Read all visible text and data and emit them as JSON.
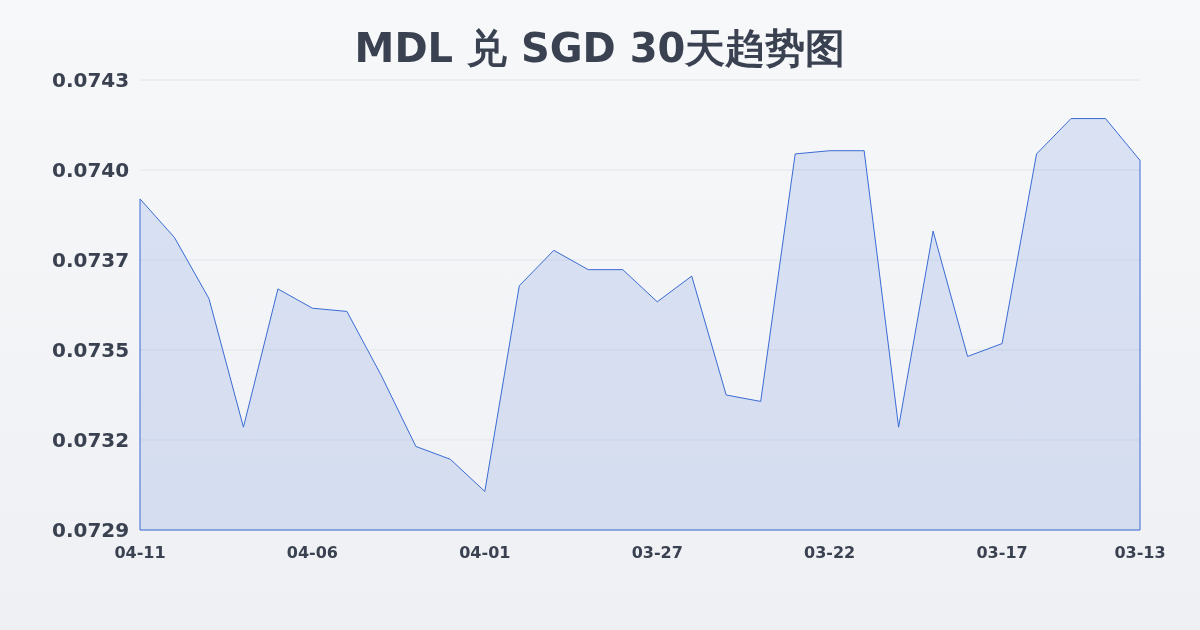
{
  "chart_data": {
    "type": "area",
    "title": "MDL 兑 SGD 30天趋势图",
    "categories": [
      "04-11",
      null,
      null,
      null,
      null,
      "04-06",
      null,
      null,
      null,
      null,
      "04-01",
      null,
      null,
      null,
      null,
      "03-27",
      null,
      null,
      null,
      null,
      "03-22",
      null,
      null,
      null,
      null,
      "03-17",
      null,
      null,
      null,
      "03-13"
    ],
    "series": [
      {
        "color": "#3a6bd4",
        "values": [
          0.07393,
          0.07381,
          0.07362,
          0.07322,
          0.07365,
          0.07359,
          0.07358,
          0.07338,
          0.07316,
          0.07312,
          0.07302,
          0.07366,
          0.07377,
          0.07371,
          0.07371,
          0.07361,
          0.07369,
          0.07332,
          0.0733,
          0.07407,
          0.07408,
          0.07408,
          0.07322,
          0.07383,
          0.07344,
          0.07348,
          0.07407,
          0.07418,
          0.07418,
          0.07405
        ]
      }
    ],
    "ylim": [
      0.0729,
      0.0743
    ],
    "yticks": [
      0.0729,
      {
        "value": 0.07318,
        "label": "0.0732"
      },
      {
        "value": 0.07346,
        "label": "0.0735"
      },
      {
        "value": 0.07374,
        "label": "0.0737"
      },
      {
        "value": 0.07402,
        "label": "0.0740"
      },
      0.0743
    ],
    "grid": "y",
    "marker": "none"
  }
}
